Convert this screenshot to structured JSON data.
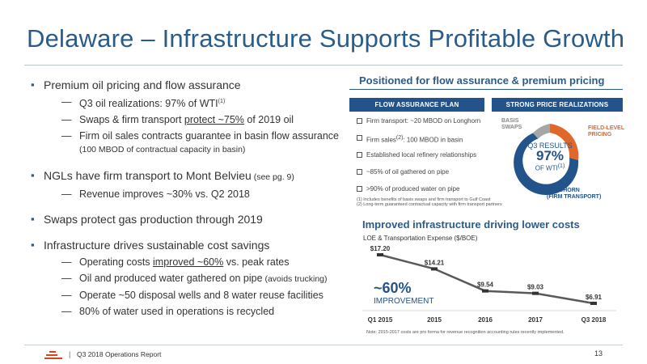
{
  "title": "Delaware – Infrastructure Supports Profitable Growth",
  "left": {
    "b1": "Premium oil pricing and flow assurance",
    "b1_subs": {
      "s1": "Q3 oil realizations: 97% of WTI",
      "s1_sup": "(1)",
      "s2_pre": "Swaps & firm transport ",
      "s2_u": "protect ~75%",
      "s2_post": " of 2019 oil",
      "s3": "Firm oil sales contracts guarantee in basin flow assurance",
      "s3_small": "(100 MBOD of contractual capacity in basin)"
    },
    "b2_main": "NGLs have firm transport to Mont Belvieu",
    "b2_small": " (see pg. 9)",
    "b2_sub": "Revenue improves ~30% vs. Q2 2018",
    "b3": "Swaps protect gas production through 2019",
    "b4": "Infrastructure drives sustainable cost savings",
    "b4_subs": {
      "s1_pre": "Operating costs ",
      "s1_u": "improved ~60%",
      "s1_post": " vs. peak rates",
      "s2_main": "Oil and produced water gathered on pipe",
      "s2_small": " (avoids trucking)",
      "s3": "Operate ~50 disposal wells and 8 water reuse facilities",
      "s4": "80% of water used in operations is recycled"
    },
    "dash": "—"
  },
  "right": {
    "title": "Positioned for flow assurance & premium pricing",
    "flow_header": "FLOW ASSURANCE PLAN",
    "price_header": "STRONG PRICE REALIZATIONS",
    "flow_items": {
      "i1": "Firm transport: ~20 MBOD on Longhorn",
      "i2_pre": "Firm sales",
      "i2_sup": "(2)",
      "i2_post": ": 100 MBOD in basin",
      "i3": "Established local refinery relationships",
      "i4": "~85% of oil gathered on pipe",
      "i5": ">90% of produced water on pipe"
    },
    "footnote1": "(1)     Includes benefits of basis swaps and firm transport to Gulf Coast",
    "footnote2": "(2)     Long-term guaranteed contractual capacity with firm transport partners",
    "donut": {
      "basis_l1": "BASIS",
      "basis_l2": "SWAPS",
      "field_l1": "FIELD-LEVEL",
      "field_l2": "PRICING",
      "long_l1": "LONGHORN",
      "long_l2": "(FIRM TRANSPORT)",
      "center_l1": "Q3 RESULTS",
      "center_l2": "97%",
      "center_l3": "OF WTI",
      "center_sup": "(1)",
      "colors": {
        "basis": "#a6a6a6",
        "field": "#e0682a",
        "longhorn": "#22538a"
      }
    },
    "chart_title": "Improved infrastructure driving lower costs",
    "chart_subtitle": "LOE & Transportation Expense ($/BOE)",
    "big_pct": "~60%",
    "big_label": "IMPROVEMENT",
    "chart_note": "Note: 2015-2017 costs are pro forma for revenue recognition accounting rules recently implemented."
  },
  "chart_data": {
    "type": "line",
    "categories": [
      "Q1 2015",
      "2015",
      "2016",
      "2017",
      "Q3 2018"
    ],
    "values": [
      17.2,
      14.21,
      9.54,
      9.03,
      6.91
    ],
    "labels": [
      "$17.20",
      "$14.21",
      "$9.54",
      "$9.03",
      "$6.91"
    ],
    "ylim": [
      0,
      20
    ],
    "title": "Improved infrastructure driving lower costs",
    "ylabel": "LOE & Transportation Expense ($/BOE)",
    "colors": {
      "line": "#595959",
      "marker": "#333333"
    },
    "grid": false
  },
  "footer": {
    "text": "Q3 2018 Operations Report",
    "separator": "|",
    "page": "13"
  }
}
